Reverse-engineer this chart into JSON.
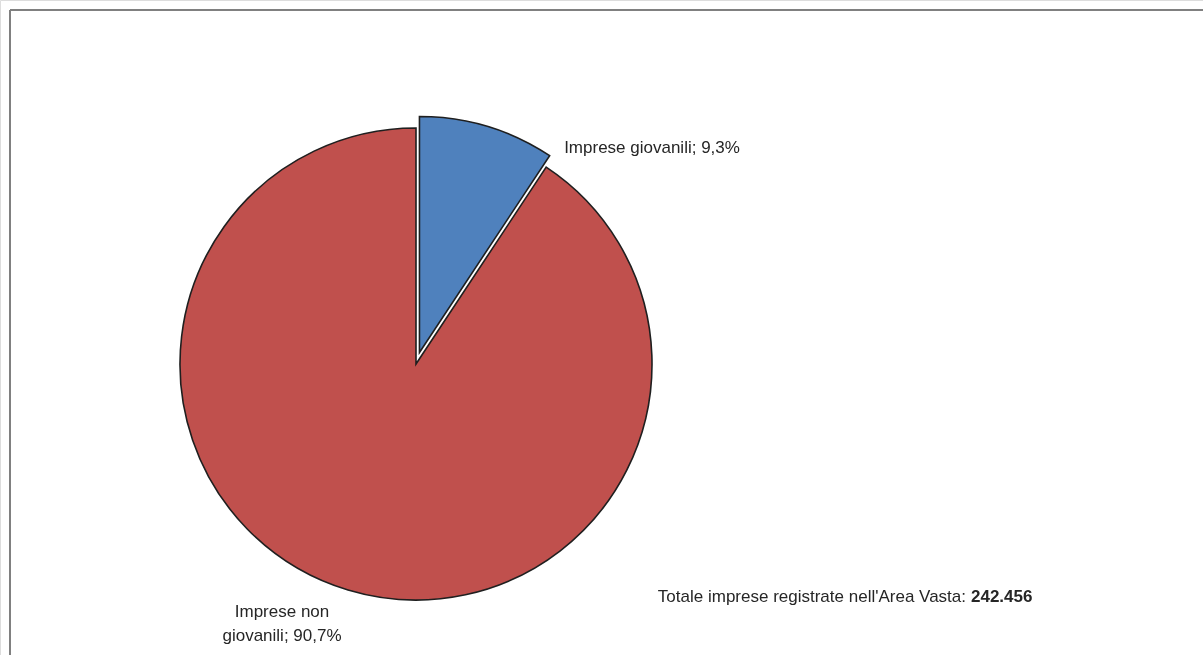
{
  "chart_data": {
    "type": "pie",
    "categories": [
      "Imprese giovanili",
      "Imprese non giovanili"
    ],
    "values": [
      9.3,
      90.7
    ],
    "colors": [
      "#4f81bd",
      "#c0504d"
    ],
    "value_labels": [
      "9,3%",
      "90,7%"
    ],
    "annotations": [
      "Totale imprese registrate nell'Area Vasta: 242.456"
    ]
  }
}
